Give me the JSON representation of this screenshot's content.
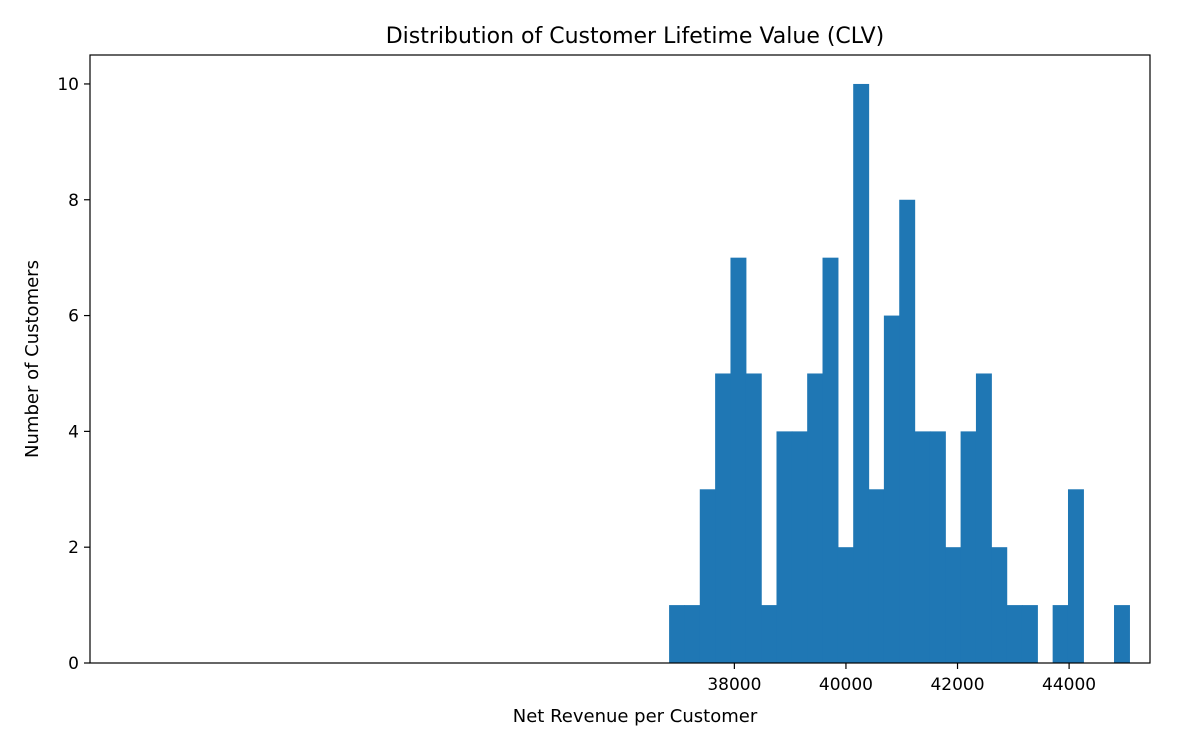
{
  "chart_data": {
    "type": "bar",
    "title": "Distribution of Customer Lifetime Value (CLV)",
    "xlabel": "Net Revenue per Customer",
    "ylabel": "Number of Customers",
    "xlim": [
      26450,
      45450
    ],
    "ylim": [
      0,
      10.5
    ],
    "xticks": [
      38000,
      40000,
      42000,
      44000
    ],
    "xtick_labels": [
      "38000",
      "40000",
      "42000",
      "44000"
    ],
    "yticks": [
      0,
      2,
      4,
      6,
      8,
      10
    ],
    "ytick_labels": [
      "0",
      "2",
      "4",
      "6",
      "8",
      "10"
    ],
    "grid": false,
    "bar_color": "#1f77b4",
    "bin_width": 275,
    "bin_start": 36830,
    "counts": [
      1,
      1,
      3,
      5,
      7,
      5,
      1,
      4,
      4,
      5,
      7,
      2,
      10,
      3,
      6,
      8,
      4,
      4,
      2,
      4,
      5,
      2,
      1,
      1,
      0,
      1,
      3,
      0,
      0,
      1
    ]
  }
}
